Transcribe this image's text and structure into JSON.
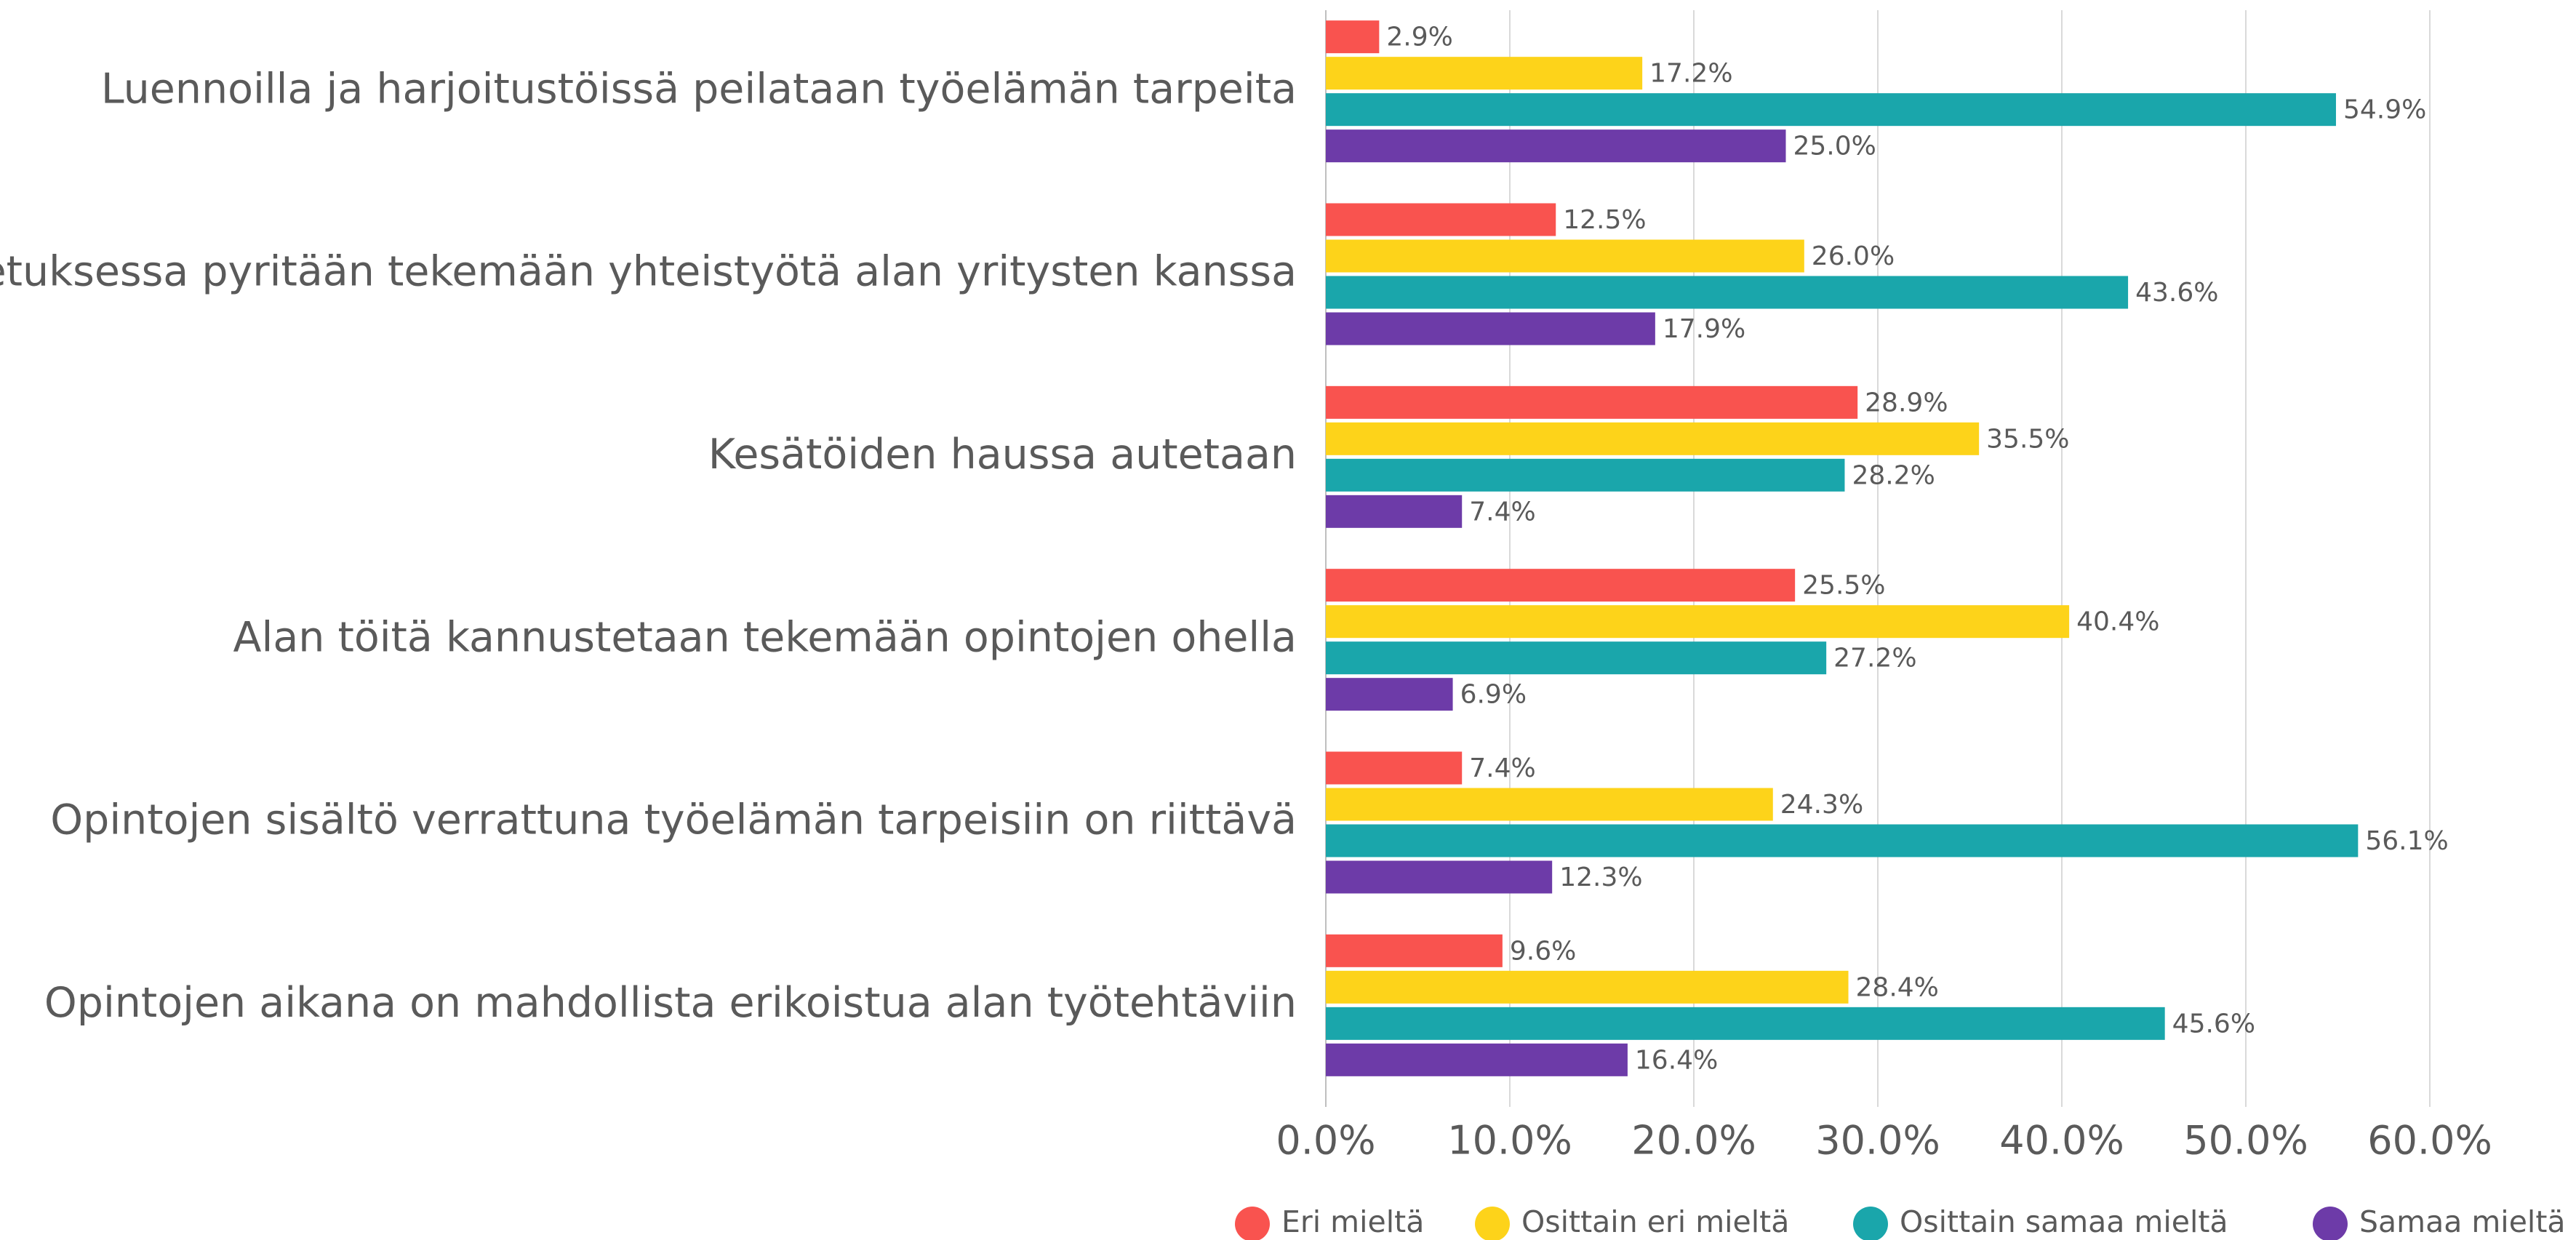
{
  "chart_data": {
    "type": "bar",
    "orientation": "horizontal",
    "categories": [
      "Luennoilla ja harjoitustöissä peilataan työelämän tarpeita",
      "Opetuksessa pyritään tekemään yhteistyötä alan yritysten kanssa",
      "Kesätöiden haussa autetaan",
      "Alan töitä kannustetaan tekemään opintojen ohella",
      "Opintojen sisältö verrattuna työelämän tarpeisiin on riittävä",
      "Opintojen aikana on mahdollista erikoistua alan työtehtäviin"
    ],
    "series": [
      {
        "name": "Eri mieltä",
        "color": "#f9534f",
        "values": [
          2.9,
          12.5,
          28.9,
          25.5,
          7.4,
          9.6
        ],
        "value_labels": [
          "2.9%",
          "12.5%",
          "28.9%",
          "25.5%",
          "7.4%",
          "9.6%"
        ]
      },
      {
        "name": "Osittain eri mieltä",
        "color": "#fdd31a",
        "values": [
          17.2,
          26.0,
          35.5,
          40.4,
          24.3,
          28.4
        ],
        "value_labels": [
          "17.2%",
          "26.0%",
          "35.5%",
          "40.4%",
          "24.3%",
          "28.4%"
        ]
      },
      {
        "name": "Osittain samaa mieltä",
        "color": "#1aa6ab",
        "values": [
          54.9,
          43.6,
          28.2,
          27.2,
          56.1,
          45.6
        ],
        "value_labels": [
          "54.9%",
          "43.6%",
          "28.2%",
          "27.2%",
          "56.1%",
          "45.6%"
        ]
      },
      {
        "name": "Samaa mieltä",
        "color": "#6d3ba8",
        "values": [
          25.0,
          17.9,
          7.4,
          6.9,
          12.3,
          16.4
        ],
        "value_labels": [
          "25.0%",
          "17.9%",
          "7.4%",
          "6.9%",
          "12.3%",
          "16.4%"
        ]
      }
    ],
    "xlim": [
      0,
      60
    ],
    "xticks": [
      {
        "value": 0,
        "label": "0.0%"
      },
      {
        "value": 10,
        "label": "10.0%"
      },
      {
        "value": 20,
        "label": "20.0%"
      },
      {
        "value": 30,
        "label": "30.0%"
      },
      {
        "value": 40,
        "label": "40.0%"
      },
      {
        "value": 50,
        "label": "50.0%"
      },
      {
        "value": 60,
        "label": "60.0%"
      }
    ],
    "grid": true,
    "legend": "bottom"
  }
}
